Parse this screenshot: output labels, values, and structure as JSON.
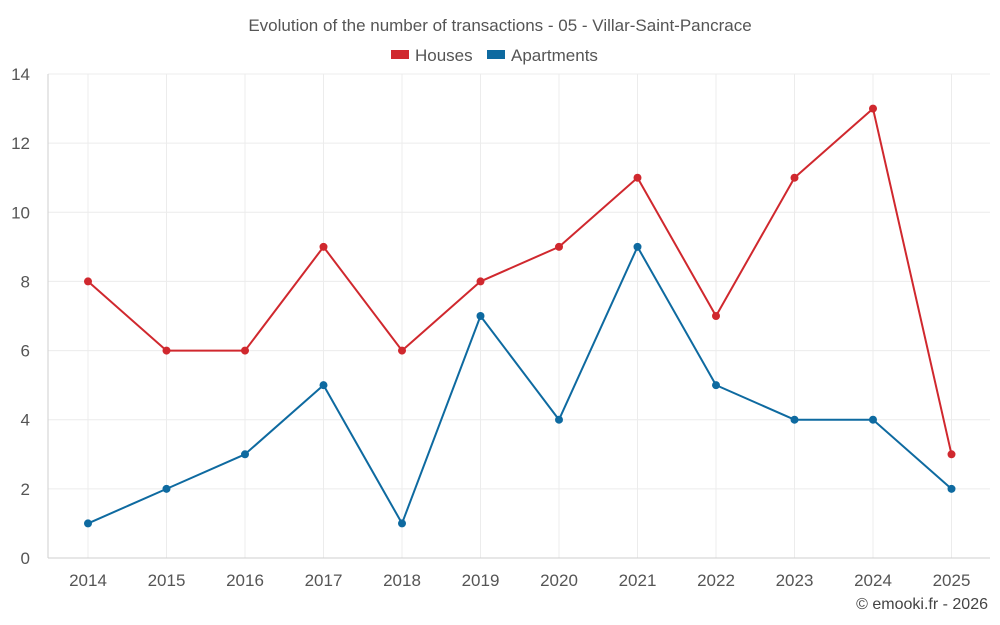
{
  "chart_data": {
    "type": "line",
    "title": "Evolution of the number of transactions - 05 - Villar-Saint-Pancrace",
    "categories": [
      "2014",
      "2015",
      "2016",
      "2017",
      "2018",
      "2019",
      "2020",
      "2021",
      "2022",
      "2023",
      "2024",
      "2025"
    ],
    "series": [
      {
        "name": "Houses",
        "color": "#d0282e",
        "values": [
          8,
          6,
          6,
          9,
          6,
          8,
          9,
          11,
          7,
          11,
          13,
          3
        ]
      },
      {
        "name": "Apartments",
        "color": "#0e6aa0",
        "values": [
          1,
          2,
          3,
          5,
          1,
          7,
          4,
          9,
          5,
          4,
          4,
          2
        ]
      }
    ],
    "ylim": [
      0,
      14
    ],
    "yticks": [
      0,
      2,
      4,
      6,
      8,
      10,
      12,
      14
    ],
    "xlabel": "",
    "ylabel": "",
    "grid": true,
    "legend": "top-center"
  },
  "credit": "© emooki.fr - 2026"
}
